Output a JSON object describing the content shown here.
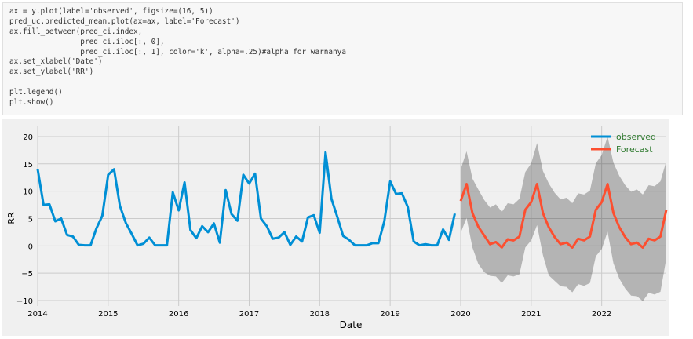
{
  "code_cell": {
    "lines": [
      "ax = y.plot(label='observed', figsize=(16, 5))",
      "pred_uc.predicted_mean.plot(ax=ax, label='Forecast')",
      "ax.fill_between(pred_ci.index,",
      "                pred_ci.iloc[:, 0],",
      "                pred_ci.iloc[:, 1], color='k', alpha=.25)#alpha for warnanya",
      "ax.set_xlabel('Date')",
      "ax.set_ylabel('RR')",
      "",
      "plt.legend()",
      "plt.show()"
    ]
  },
  "chart_data": {
    "type": "line",
    "xlabel": "Date",
    "ylabel": "RR",
    "xlim": [
      "2014-01",
      "2022-12"
    ],
    "ylim": [
      -11,
      22
    ],
    "x_ticks": [
      "2014",
      "2015",
      "2016",
      "2017",
      "2018",
      "2019",
      "2020",
      "2021",
      "2022"
    ],
    "y_ticks": [
      -10,
      -5,
      0,
      5,
      10,
      15,
      20
    ],
    "y_tick_labels": [
      "−10",
      "−5",
      "0",
      "5",
      "10",
      "15",
      "20"
    ],
    "grid": true,
    "legend_position": "top-right",
    "series": [
      {
        "name": "observed",
        "color": "#008fd5",
        "x_start": "2014-01",
        "frequency": "monthly",
        "values": [
          14,
          7.5,
          7.6,
          4.5,
          5,
          2,
          1.7,
          0.2,
          0.1,
          0.1,
          3.2,
          5.5,
          13,
          14,
          7.3,
          4.2,
          2.2,
          0.1,
          0.4,
          1.5,
          0.1,
          0.1,
          0.1,
          9.8,
          6.5,
          11.6,
          2.9,
          1.4,
          3.6,
          2.5,
          4.1,
          0.6,
          10.2,
          5.8,
          4.6,
          13,
          11.4,
          13.2,
          5,
          3.6,
          1.3,
          1.5,
          2.5,
          0.2,
          1.7,
          0.8,
          5.2,
          5.6,
          2.4,
          17.1,
          8.6,
          5.3,
          1.8,
          1.1,
          0.1,
          0.1,
          0.1,
          0.5,
          0.5,
          4.5,
          11.8,
          9.5,
          9.6,
          7.1,
          0.8,
          0.1,
          0.3,
          0.1,
          0.1,
          3,
          1.1,
          5.9
        ]
      },
      {
        "name": "Forecast",
        "color": "#fc4f30",
        "x_start": "2020-01",
        "frequency": "monthly",
        "values": [
          8.2,
          11.3,
          6,
          3.5,
          1.9,
          0.3,
          0.7,
          -0.3,
          1.2,
          1,
          1.7,
          6.6,
          8,
          11.3,
          6,
          3.4,
          1.6,
          0.3,
          0.6,
          -0.3,
          1.3,
          1,
          1.7,
          6.6,
          8,
          11.3,
          6,
          3.4,
          1.6,
          0.3,
          0.6,
          -0.3,
          1.3,
          1,
          1.7,
          6.6
        ]
      }
    ],
    "confidence_band": {
      "color": "#000000",
      "alpha": 0.25,
      "x_start": "2020-01",
      "frequency": "monthly",
      "upper": [
        14,
        17.3,
        12.3,
        10.3,
        8.4,
        7,
        7.6,
        6.2,
        7.8,
        7.6,
        8.6,
        13.5,
        15.1,
        18.8,
        13.7,
        11.4,
        9.7,
        8.5,
        8.8,
        7.8,
        9.6,
        9.4,
        10.1,
        15.1,
        16.6,
        20,
        15.2,
        12.8,
        11.1,
        9.9,
        10.3,
        9.4,
        11.1,
        10.9,
        11.8,
        15.5
      ],
      "lower": [
        2.4,
        5.1,
        -0.3,
        -3.3,
        -4.8,
        -5.5,
        -5.6,
        -6.8,
        -5.4,
        -5.6,
        -5.2,
        -0.3,
        1,
        3.8,
        -1.7,
        -5.4,
        -6.4,
        -7.4,
        -7.5,
        -8.5,
        -7,
        -7.3,
        -6.8,
        -1.9,
        -0.6,
        2.6,
        -3.2,
        -6,
        -7.8,
        -9.1,
        -9.2,
        -10.1,
        -8.6,
        -8.9,
        -8.4,
        -2.3
      ]
    }
  }
}
